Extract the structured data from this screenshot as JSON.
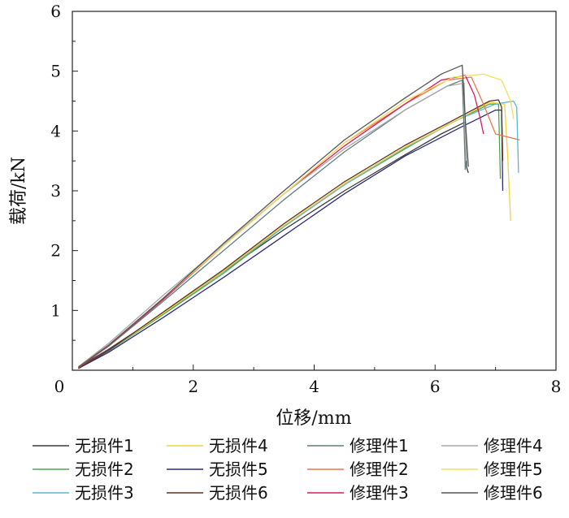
{
  "chart_data": {
    "type": "line",
    "xlabel": "位移/mm",
    "ylabel": "载荷/kN",
    "xlim": [
      0,
      8
    ],
    "ylim": [
      0,
      6
    ],
    "xticks": [
      "0",
      "2",
      "4",
      "6",
      "8"
    ],
    "yticks": [
      "0",
      "1",
      "2",
      "3",
      "4",
      "5",
      "6"
    ],
    "grid": false,
    "legend_position": "bottom",
    "series": [
      {
        "name": "无损件1",
        "color": "#3a3a3a",
        "x": [
          0.1,
          0.6,
          1.5,
          2.5,
          3.5,
          4.5,
          5.5,
          6.1,
          6.5,
          6.52,
          6.55
        ],
        "y": [
          0.05,
          0.35,
          0.95,
          1.65,
          2.35,
          3.0,
          3.6,
          3.95,
          4.15,
          3.4,
          3.3
        ]
      },
      {
        "name": "无损件2",
        "color": "#4aa84a",
        "x": [
          0.1,
          0.6,
          1.5,
          2.5,
          3.5,
          4.5,
          5.5,
          6.2,
          6.9,
          7.05,
          7.08
        ],
        "y": [
          0.03,
          0.32,
          0.93,
          1.62,
          2.4,
          3.1,
          3.7,
          4.1,
          4.45,
          4.45,
          3.2
        ]
      },
      {
        "name": "无损件3",
        "color": "#5fb3d6",
        "x": [
          0.1,
          0.6,
          1.5,
          2.5,
          3.5,
          4.5,
          5.5,
          6.4,
          7.0,
          7.3,
          7.35,
          7.38
        ],
        "y": [
          0.03,
          0.32,
          0.95,
          1.65,
          2.4,
          3.1,
          3.72,
          4.2,
          4.45,
          4.5,
          4.4,
          3.3
        ]
      },
      {
        "name": "无损件4",
        "color": "#f2d23c",
        "x": [
          0.1,
          0.6,
          1.5,
          2.5,
          3.5,
          4.5,
          5.5,
          6.3,
          6.9,
          7.15,
          7.2,
          7.25
        ],
        "y": [
          0.03,
          0.33,
          0.95,
          1.66,
          2.42,
          3.12,
          3.73,
          4.15,
          4.48,
          4.45,
          3.6,
          2.5
        ]
      },
      {
        "name": "无损件5",
        "color": "#2a2a7a",
        "x": [
          0.1,
          0.6,
          1.5,
          2.5,
          3.5,
          4.5,
          5.5,
          6.4,
          7.0,
          7.1,
          7.12
        ],
        "y": [
          0.03,
          0.3,
          0.88,
          1.55,
          2.25,
          2.95,
          3.58,
          4.05,
          4.35,
          4.35,
          3.0
        ]
      },
      {
        "name": "无损件6",
        "color": "#5a3320",
        "x": [
          0.1,
          0.6,
          1.5,
          2.5,
          3.5,
          4.5,
          5.5,
          6.3,
          6.9,
          7.05,
          7.1,
          7.12
        ],
        "y": [
          0.03,
          0.33,
          0.97,
          1.68,
          2.45,
          3.15,
          3.76,
          4.18,
          4.5,
          4.52,
          4.4,
          3.5
        ]
      },
      {
        "name": "修理件1",
        "color": "#5f7f7f",
        "x": [
          0.1,
          0.6,
          1.5,
          2.5,
          3.5,
          4.5,
          5.5,
          6.2,
          6.45,
          6.48,
          6.5
        ],
        "y": [
          0.05,
          0.4,
          1.15,
          2.0,
          2.85,
          3.65,
          4.35,
          4.75,
          4.85,
          4.0,
          3.35
        ]
      },
      {
        "name": "修理件2",
        "color": "#e8794a",
        "x": [
          0.1,
          0.6,
          1.5,
          2.5,
          3.5,
          4.5,
          5.5,
          6.2,
          6.6,
          6.8,
          7.0,
          7.4
        ],
        "y": [
          0.05,
          0.42,
          1.2,
          2.1,
          2.95,
          3.8,
          4.45,
          4.85,
          4.9,
          4.45,
          3.95,
          3.85
        ]
      },
      {
        "name": "修理件3",
        "color": "#d81b60",
        "x": [
          0.1,
          0.6,
          1.5,
          2.5,
          3.5,
          4.5,
          5.5,
          6.1,
          6.5,
          6.65,
          6.75,
          6.8
        ],
        "y": [
          0.04,
          0.41,
          1.18,
          2.08,
          2.95,
          3.75,
          4.45,
          4.85,
          4.93,
          4.6,
          4.2,
          3.95
        ]
      },
      {
        "name": "修理件4",
        "color": "#a8a8a8",
        "x": [
          0.1,
          0.6,
          1.5,
          2.5,
          3.5,
          4.5,
          5.5,
          6.2,
          6.48,
          6.5,
          6.52
        ],
        "y": [
          0.06,
          0.45,
          1.25,
          2.1,
          2.95,
          3.7,
          4.35,
          4.75,
          4.8,
          4.0,
          3.5
        ]
      },
      {
        "name": "修理件5",
        "color": "#f0e05a",
        "x": [
          0.1,
          0.6,
          1.5,
          2.5,
          3.5,
          4.5,
          5.5,
          6.3,
          6.8,
          7.1,
          7.25,
          7.3
        ],
        "y": [
          0.05,
          0.42,
          1.2,
          2.08,
          2.95,
          3.8,
          4.5,
          4.9,
          4.95,
          4.85,
          4.5,
          4.2
        ]
      },
      {
        "name": "修理件6",
        "color": "#555555",
        "x": [
          0.1,
          0.6,
          1.5,
          2.5,
          3.5,
          4.5,
          5.5,
          6.1,
          6.45,
          6.5,
          6.55
        ],
        "y": [
          0.05,
          0.42,
          1.2,
          2.12,
          3.0,
          3.85,
          4.55,
          4.95,
          5.1,
          4.2,
          3.4
        ]
      }
    ]
  }
}
